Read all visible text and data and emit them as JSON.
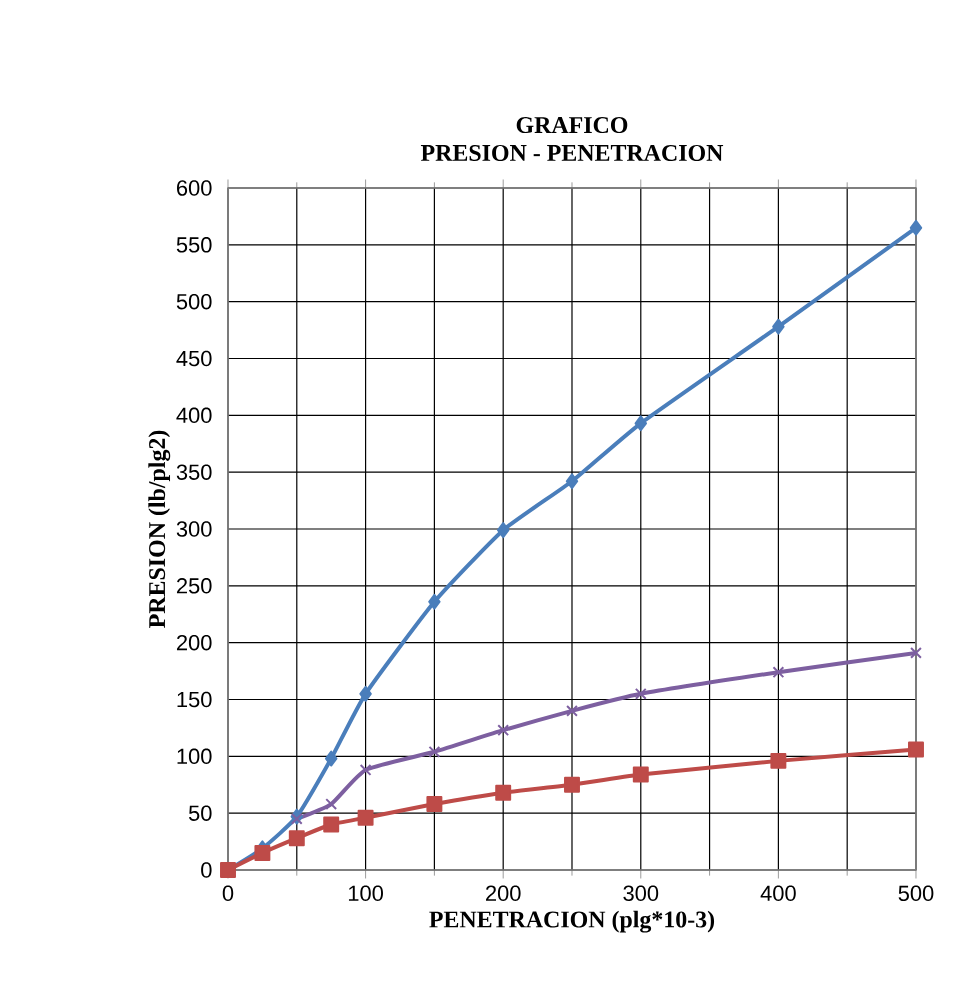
{
  "chart_data": {
    "type": "line",
    "title": "GRAFICO\nPRESION - PENETRACION",
    "xlabel": "PENETRACION (plg*10-3)",
    "ylabel": "PRESION (lb/plg2)",
    "xlim": [
      0,
      500
    ],
    "xticks": [
      0,
      100,
      200,
      300,
      400,
      500
    ],
    "ylim": [
      0,
      600
    ],
    "yticks": [
      0,
      50,
      100,
      150,
      200,
      250,
      300,
      350,
      400,
      450,
      500,
      550,
      600
    ],
    "grid": true,
    "series": [
      {
        "color": "#4a7ebb",
        "marker": "diamond",
        "x": [
          0,
          25,
          50,
          75,
          100,
          150,
          200,
          250,
          300,
          400,
          500
        ],
        "values": [
          0,
          19,
          47,
          98,
          155,
          236,
          299,
          342,
          393,
          478,
          565
        ]
      },
      {
        "color": "#be4b48",
        "marker": "square",
        "x": [
          0,
          25,
          50,
          75,
          100,
          150,
          200,
          250,
          300,
          400,
          500
        ],
        "values": [
          0,
          15,
          28,
          40,
          46,
          58,
          68,
          75,
          84,
          96,
          106
        ]
      },
      {
        "color": "#7d5fa0",
        "marker": "cross",
        "x": [
          50,
          75,
          100,
          150,
          200,
          250,
          300,
          400,
          500
        ],
        "values": [
          45,
          58,
          88,
          104,
          123,
          140,
          155,
          174,
          191
        ]
      }
    ]
  }
}
